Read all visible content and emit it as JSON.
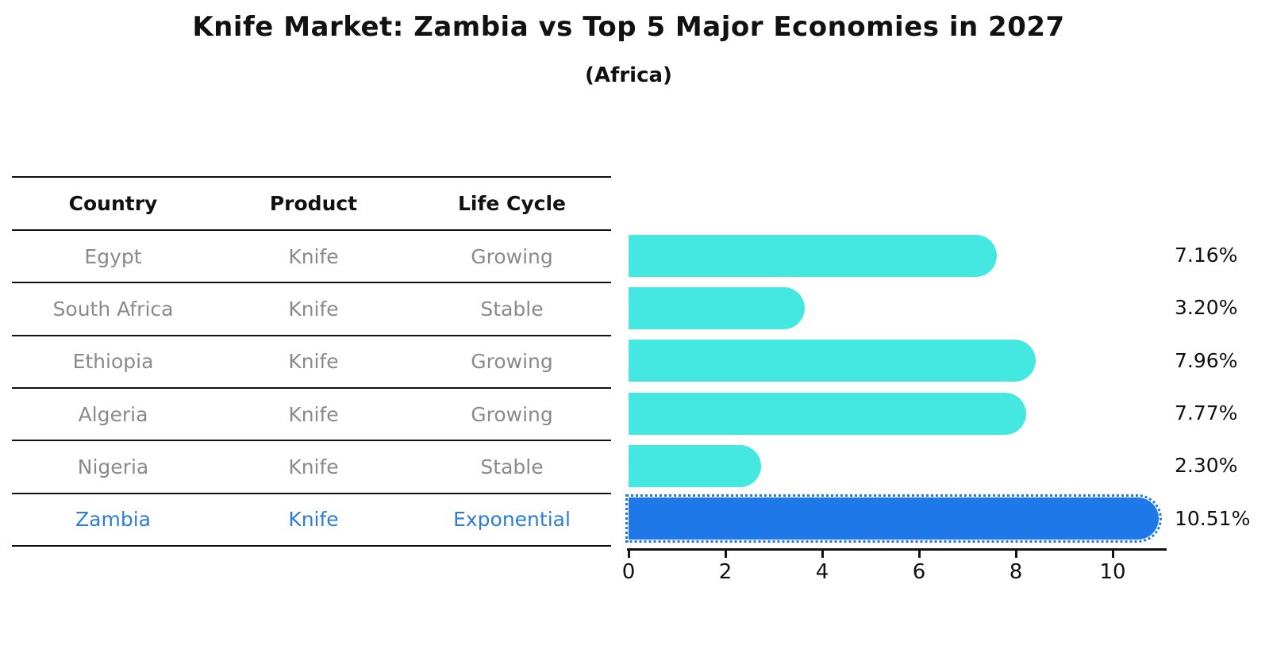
{
  "title": "Knife Market: Zambia vs Top 5 Major Economies in 2027",
  "subtitle": "(Africa)",
  "table": {
    "headers": [
      "Country",
      "Product",
      "Life Cycle"
    ],
    "rows": [
      {
        "country": "Egypt",
        "product": "Knife",
        "life_cycle": "Growing",
        "highlight": false
      },
      {
        "country": "South Africa",
        "product": "Knife",
        "life_cycle": "Stable",
        "highlight": false
      },
      {
        "country": "Ethiopia",
        "product": "Knife",
        "life_cycle": "Growing",
        "highlight": false
      },
      {
        "country": "Algeria",
        "product": "Knife",
        "life_cycle": "Growing",
        "highlight": false
      },
      {
        "country": "Nigeria",
        "product": "Knife",
        "life_cycle": "Stable",
        "highlight": false
      },
      {
        "country": "Zambia",
        "product": "Knife",
        "life_cycle": "Exponential",
        "highlight": true
      }
    ]
  },
  "chart_data": {
    "type": "bar",
    "orientation": "horizontal",
    "title": "Knife Market: Zambia vs Top 5 Major Economies in 2027",
    "subtitle": "(Africa)",
    "categories": [
      "Egypt",
      "South Africa",
      "Ethiopia",
      "Algeria",
      "Nigeria",
      "Zambia"
    ],
    "values": [
      7.16,
      3.2,
      7.96,
      7.77,
      2.3,
      10.51
    ],
    "value_labels": [
      "7.16%",
      "3.20%",
      "7.96%",
      "7.77%",
      "2.30%",
      "10.51%"
    ],
    "x_ticks": [
      0,
      2,
      4,
      6,
      8,
      10
    ],
    "xlim": [
      0,
      11
    ],
    "grid": false,
    "legend": false,
    "highlight_category": "Zambia",
    "bar_color": "#45e8e0",
    "highlight_color": "#1e78e8"
  },
  "colors": {
    "bar_cyan": "#45e8e0",
    "bar_blue": "#1e78e8",
    "highlight_text_blue": "#2e7cd6",
    "row_text_gray": "#8a8a8a",
    "axis_black": "#111111"
  }
}
